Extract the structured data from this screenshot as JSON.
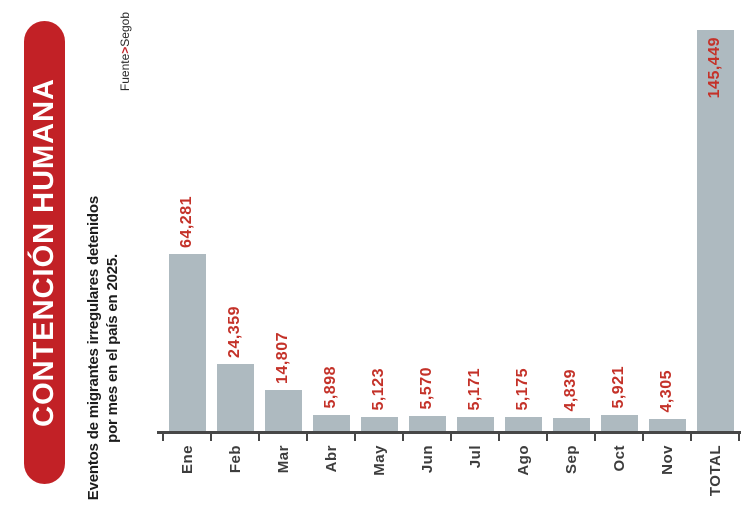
{
  "page": {
    "background": "#ffffff"
  },
  "banner": {
    "title": "CONTENCIÓN HUMANA",
    "bg_color": "#c22126",
    "text_color": "#ffffff"
  },
  "subtitle": {
    "line1": "Eventos de migrantes irregulares detenidos",
    "line2": "por mes en el país en 2025."
  },
  "source": {
    "prefix": "Fuente",
    "separator": ">",
    "name": "Segob",
    "separator_color": "#c22126",
    "text_color": "#2a2a2a"
  },
  "chart_data": {
    "type": "bar",
    "orientation": "vertical",
    "rotated_labels": true,
    "categories": [
      "Ene",
      "Feb",
      "Mar",
      "Abr",
      "May",
      "Jun",
      "Jul",
      "Ago",
      "Sep",
      "Oct",
      "Nov",
      "TOTAL"
    ],
    "values": [
      64281,
      24359,
      14807,
      5898,
      5123,
      5570,
      5171,
      5175,
      4839,
      5921,
      4305,
      145449
    ],
    "value_labels": [
      "64,281",
      "24,359",
      "14,807",
      "5,898",
      "5,123",
      "5,570",
      "5,171",
      "5,175",
      "4,839",
      "5,921",
      "4,305",
      "145,449"
    ],
    "title": "",
    "xlabel": "",
    "ylabel": "",
    "ylim": [
      0,
      145449
    ],
    "grid": false,
    "legend": false,
    "bar_color": "#aebac0",
    "value_label_color": "#c43229",
    "category_label_color": "#3d3d3d",
    "axis_color": "#474747"
  }
}
